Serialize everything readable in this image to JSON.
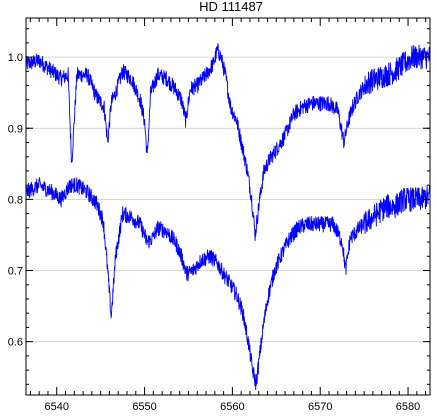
{
  "chart_data": {
    "type": "line",
    "title": "HD 111487",
    "xlabel": "",
    "ylabel": "",
    "xlim": [
      6536.5,
      6582.5
    ],
    "ylim": [
      0.525,
      1.055
    ],
    "grid": "horizontal",
    "colors": {
      "series": "#0000ff",
      "grid": "#c8c8c8",
      "axes": "#000000"
    },
    "x_ticks": [
      {
        "value": 6540,
        "label": "6540"
      },
      {
        "value": 6550,
        "label": "6550"
      },
      {
        "value": 6560,
        "label": "6560"
      },
      {
        "value": 6570,
        "label": "6570"
      },
      {
        "value": 6580,
        "label": "6580"
      }
    ],
    "y_ticks": [
      {
        "value": 0.6,
        "label": "0.6"
      },
      {
        "value": 0.7,
        "label": "0.7"
      },
      {
        "value": 0.8,
        "label": "0.8"
      },
      {
        "value": 0.9,
        "label": "0.9"
      },
      {
        "value": 1.0,
        "label": "1.0"
      }
    ],
    "series": [
      {
        "x": [
          6536.5,
          6538,
          6539.5,
          6540.5,
          6541.3,
          6541.7,
          6542.3,
          6543.5,
          6544.5,
          6545.4,
          6545.8,
          6546.2,
          6546.7,
          6547.5,
          6548.5,
          6549.5,
          6550,
          6550.3,
          6550.7,
          6551.5,
          6552.5,
          6553.5,
          6554.2,
          6554.7,
          6555.2,
          6556,
          6557,
          6557.8,
          6558.3,
          6558.7,
          6559.2,
          6559.8,
          6560.5,
          6561.2,
          6561.7,
          6562.2,
          6562.6,
          6563.1,
          6563.6,
          6564.2,
          6565,
          6566,
          6567,
          6568,
          6569,
          6570,
          6571,
          6572,
          6572.7,
          6573.2,
          6573.7,
          6574.5,
          6575.5,
          6576.5,
          6577.5,
          6578.5,
          6579.5,
          6580.5,
          6581.5,
          6582.5
        ],
        "y": [
          0.99,
          0.995,
          0.98,
          0.97,
          0.975,
          0.85,
          0.975,
          0.975,
          0.945,
          0.93,
          0.88,
          0.935,
          0.95,
          0.98,
          0.97,
          0.94,
          0.91,
          0.86,
          0.95,
          0.975,
          0.97,
          0.955,
          0.94,
          0.91,
          0.955,
          0.96,
          0.975,
          0.99,
          1.01,
          1.0,
          0.975,
          0.93,
          0.91,
          0.87,
          0.84,
          0.8,
          0.75,
          0.8,
          0.84,
          0.855,
          0.87,
          0.89,
          0.92,
          0.93,
          0.935,
          0.935,
          0.935,
          0.925,
          0.88,
          0.91,
          0.93,
          0.95,
          0.965,
          0.97,
          0.975,
          0.98,
          0.99,
          1.0,
          1.0,
          1.0
        ]
      },
      {
        "x": [
          6536.5,
          6538,
          6539.5,
          6540.5,
          6541.5,
          6542.3,
          6543.5,
          6544.5,
          6545.3,
          6545.8,
          6546.2,
          6546.7,
          6547.5,
          6548.5,
          6549.5,
          6550.3,
          6550.9,
          6551.5,
          6552.5,
          6553.5,
          6554.2,
          6554.8,
          6555.5,
          6556.5,
          6557.5,
          6558.3,
          6559,
          6559.8,
          6560.5,
          6561.2,
          6561.8,
          6562.3,
          6562.7,
          6563.1,
          6563.5,
          6564,
          6564.8,
          6565.5,
          6566.5,
          6567.5,
          6568.5,
          6569.5,
          6570.5,
          6571.5,
          6572.5,
          6572.9,
          6573.4,
          6574.5,
          6575.5,
          6576.5,
          6577.5,
          6578.5,
          6579.5,
          6580.5,
          6581.5,
          6582.5
        ],
        "y": [
          0.81,
          0.82,
          0.81,
          0.8,
          0.82,
          0.82,
          0.81,
          0.795,
          0.77,
          0.7,
          0.635,
          0.72,
          0.78,
          0.775,
          0.765,
          0.74,
          0.745,
          0.76,
          0.755,
          0.74,
          0.72,
          0.695,
          0.7,
          0.715,
          0.72,
          0.71,
          0.695,
          0.68,
          0.665,
          0.64,
          0.6,
          0.56,
          0.54,
          0.58,
          0.62,
          0.66,
          0.7,
          0.72,
          0.745,
          0.76,
          0.765,
          0.765,
          0.765,
          0.765,
          0.74,
          0.7,
          0.745,
          0.76,
          0.77,
          0.78,
          0.79,
          0.79,
          0.8,
          0.8,
          0.8,
          0.805
        ]
      }
    ]
  }
}
